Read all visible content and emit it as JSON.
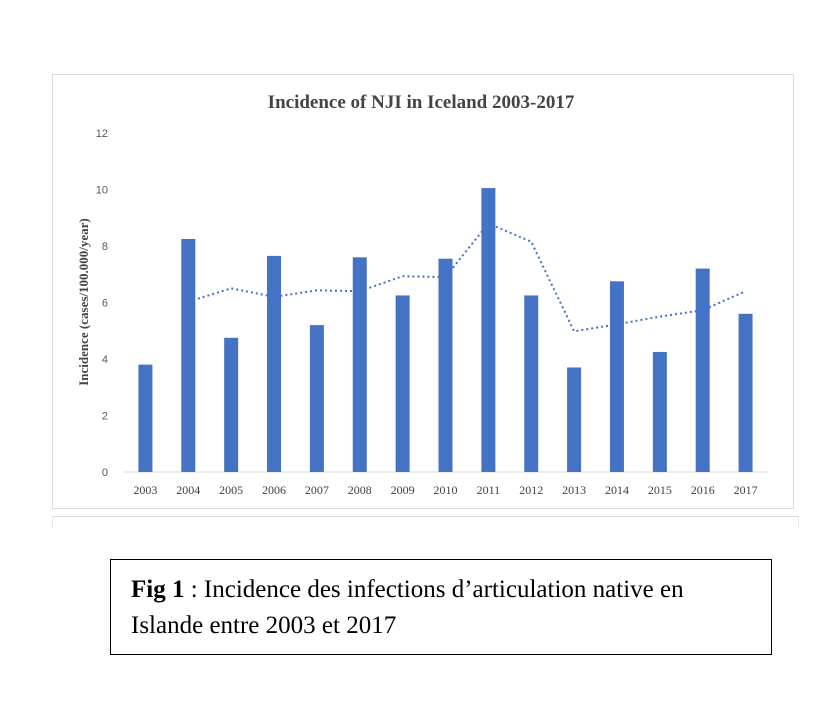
{
  "chart_data": {
    "type": "bar",
    "title": "Incidence of NJI in Iceland 2003-2017",
    "ylabel": "Incidence (cases/100.000/year)",
    "xlabel": "",
    "ylim": [
      0,
      12
    ],
    "yticks": [
      "0",
      "2",
      "4",
      "6",
      "8",
      "10",
      "12"
    ],
    "categories": [
      "2003",
      "2004",
      "2005",
      "2006",
      "2007",
      "2008",
      "2009",
      "2010",
      "2011",
      "2012",
      "2013",
      "2014",
      "2015",
      "2016",
      "2017"
    ],
    "values": [
      3.8,
      8.25,
      4.75,
      7.65,
      5.2,
      7.6,
      6.25,
      7.55,
      10.05,
      6.25,
      3.7,
      6.75,
      4.25,
      7.2,
      5.6
    ],
    "trendline": {
      "style": "dotted",
      "type": "2-period moving average",
      "values": [
        null,
        6.03,
        6.5,
        6.2,
        6.43,
        6.4,
        6.93,
        6.9,
        8.8,
        8.15,
        4.98,
        5.23,
        5.5,
        5.73,
        6.4
      ]
    },
    "bar_color": "#4472c4",
    "grid": false,
    "legend": "none"
  },
  "caption": {
    "label": "Fig 1",
    "separator": " : ",
    "text": "Incidence des infections d’articulation native en Islande entre 2003 et 2017"
  }
}
